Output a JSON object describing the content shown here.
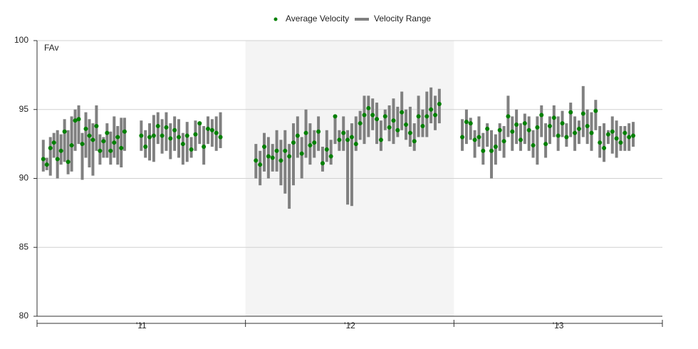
{
  "chart_data": {
    "type": "range-dot",
    "annotation": "FAv",
    "legend": "top",
    "ylim": [
      80,
      100
    ],
    "yticks": [
      80,
      85,
      90,
      95,
      100
    ],
    "grid": true,
    "xlim": [
      0,
      300
    ],
    "xticks": [
      0,
      100,
      200,
      300
    ],
    "seasons": [
      "'11",
      "'12",
      "'13"
    ],
    "shaded_season": 1,
    "x": [
      3,
      4.7,
      6.4,
      8.1,
      9.8,
      11.5,
      13.2,
      14.9,
      16.6,
      18.3,
      20,
      21.7,
      23.4,
      25.1,
      26.8,
      28.5,
      30.2,
      31.9,
      33.6,
      35.3,
      37,
      38.7,
      40.4,
      42,
      50,
      52,
      54,
      56,
      58,
      60,
      62,
      64,
      66,
      68,
      70,
      72,
      74,
      76,
      78,
      80,
      82,
      84,
      86,
      88,
      105,
      107,
      109,
      111,
      113,
      115,
      117,
      119,
      121,
      123,
      125,
      127,
      129,
      131,
      133,
      135,
      137,
      139,
      141,
      143,
      145,
      147,
      149,
      151,
      153,
      155,
      157,
      159,
      161,
      163,
      165,
      167,
      169,
      171,
      173,
      175,
      177,
      179,
      181,
      183,
      185,
      187,
      189,
      191,
      193,
      204,
      206,
      208,
      210,
      212,
      214,
      216,
      218,
      220,
      222,
      224,
      226,
      228,
      230,
      232,
      234,
      236,
      238,
      240,
      242,
      244,
      246,
      248,
      250,
      252,
      254,
      256,
      258,
      260,
      262,
      264,
      266,
      268,
      270,
      272,
      274,
      276,
      278,
      280,
      282,
      284,
      286
    ],
    "series": [
      {
        "name": "Average Velocity",
        "color": "#008000",
        "values": [
          91.4,
          91.0,
          92.2,
          92.6,
          91.4,
          92.0,
          93.4,
          91.2,
          92.4,
          94.2,
          94.3,
          92.5,
          93.6,
          93.1,
          92.8,
          93.8,
          92.0,
          92.7,
          93.3,
          92.0,
          92.6,
          93.0,
          92.2,
          93.4,
          93.1,
          92.3,
          93.0,
          93.1,
          93.8,
          93.1,
          93.7,
          92.9,
          93.5,
          93.0,
          92.5,
          93.1,
          92.1,
          93.2,
          94.0,
          92.3,
          93.6,
          93.5,
          93.3,
          93.0,
          91.3,
          91.0,
          92.3,
          91.6,
          91.5,
          92.0,
          91.3,
          92.0,
          91.6,
          92.6,
          93.1,
          91.8,
          93.3,
          92.4,
          92.6,
          93.4,
          91.1,
          92.1,
          91.6,
          94.5,
          92.8,
          93.3,
          92.8,
          93.0,
          92.5,
          94.0,
          94.6,
          95.1,
          94.6,
          94.3,
          92.8,
          94.5,
          93.7,
          94.2,
          93.5,
          94.8,
          93.9,
          93.3,
          92.7,
          94.5,
          93.8,
          94.5,
          95.0,
          94.6,
          95.4,
          93.0,
          94.1,
          94.0,
          92.8,
          93.0,
          92.0,
          93.6,
          92.0,
          92.3,
          93.5,
          92.7,
          94.5,
          93.4,
          93.9,
          92.8,
          94.0,
          93.5,
          92.4,
          93.7,
          94.6,
          92.5,
          93.8,
          94.4,
          93.1,
          94.0,
          93.0,
          94.8,
          93.3,
          93.6,
          94.7,
          93.8,
          93.3,
          94.9,
          92.6,
          92.2,
          93.2,
          93.4,
          92.9,
          92.6,
          93.3,
          93.0,
          93.1
        ]
      },
      {
        "name": "Velocity Range",
        "color": "#808080",
        "low": [
          90.5,
          90.6,
          90.2,
          91.5,
          90.0,
          91.0,
          91.2,
          90.3,
          90.5,
          92.0,
          92.5,
          89.9,
          91.5,
          90.8,
          90.2,
          92.0,
          91.0,
          91.5,
          91.5,
          91.0,
          91.5,
          91.0,
          90.8,
          92.0,
          92.0,
          91.5,
          91.3,
          91.2,
          92.5,
          91.8,
          92.0,
          91.4,
          92.0,
          91.5,
          91.0,
          91.2,
          91.5,
          92.0,
          92.5,
          91.0,
          92.5,
          92.3,
          92.0,
          92.2,
          90.0,
          89.5,
          90.5,
          90.0,
          90.5,
          90.5,
          89.5,
          88.9,
          87.8,
          89.5,
          91.5,
          90.0,
          91.5,
          91.0,
          91.5,
          92.0,
          90.5,
          91.2,
          91.0,
          92.5,
          92.0,
          92.0,
          88.1,
          88.0,
          92.0,
          92.8,
          92.5,
          93.0,
          93.5,
          92.5,
          92.0,
          93.5,
          92.7,
          92.5,
          93.0,
          93.5,
          92.8,
          92.3,
          92.0,
          93.0,
          93.0,
          93.0,
          94.0,
          93.5,
          94.0,
          92.0,
          92.5,
          92.8,
          91.5,
          92.3,
          91.0,
          92.3,
          90.0,
          91.0,
          92.0,
          91.5,
          93.0,
          92.0,
          92.5,
          92.0,
          92.5,
          92.0,
          91.5,
          91.0,
          93.0,
          91.5,
          92.5,
          93.0,
          92.0,
          93.0,
          92.3,
          93.0,
          92.0,
          92.5,
          93.0,
          92.5,
          92.0,
          93.5,
          91.5,
          91.2,
          92.5,
          91.8,
          91.5,
          92.0,
          92.0,
          92.0,
          92.3
        ],
        "high": [
          92.8,
          91.5,
          93.0,
          93.3,
          93.5,
          93.2,
          94.3,
          93.5,
          94.5,
          95.0,
          95.3,
          93.3,
          94.8,
          94.3,
          94.0,
          95.3,
          93.2,
          93.0,
          94.0,
          93.4,
          94.5,
          93.8,
          94.4,
          94.4,
          94.2,
          93.5,
          94.0,
          94.6,
          94.8,
          94.3,
          94.8,
          94.0,
          94.5,
          94.3,
          93.3,
          94.1,
          93.0,
          94.2,
          94.1,
          93.8,
          94.5,
          94.3,
          94.5,
          94.8,
          92.5,
          92.0,
          93.3,
          93.0,
          92.5,
          93.5,
          92.8,
          93.5,
          92.5,
          94.0,
          94.5,
          93.0,
          95.0,
          94.0,
          93.5,
          94.5,
          92.3,
          93.5,
          92.8,
          94.6,
          93.5,
          94.5,
          93.5,
          94.0,
          94.5,
          94.9,
          96.0,
          96.0,
          95.8,
          95.5,
          94.2,
          95.0,
          95.3,
          95.8,
          95.2,
          96.3,
          95.0,
          95.2,
          94.0,
          96.0,
          95.0,
          96.3,
          96.6,
          96.0,
          96.5,
          94.3,
          95.0,
          94.4,
          93.5,
          94.5,
          93.3,
          94.0,
          93.5,
          93.2,
          94.0,
          93.8,
          96.0,
          94.5,
          95.0,
          94.0,
          94.7,
          94.5,
          93.5,
          94.5,
          95.3,
          94.0,
          94.5,
          95.3,
          94.5,
          94.9,
          94.0,
          95.5,
          94.5,
          94.2,
          96.7,
          95.0,
          94.8,
          95.7,
          93.8,
          94.0,
          93.5,
          94.5,
          94.2,
          93.8,
          93.8,
          94.0,
          94.1
        ]
      }
    ]
  }
}
